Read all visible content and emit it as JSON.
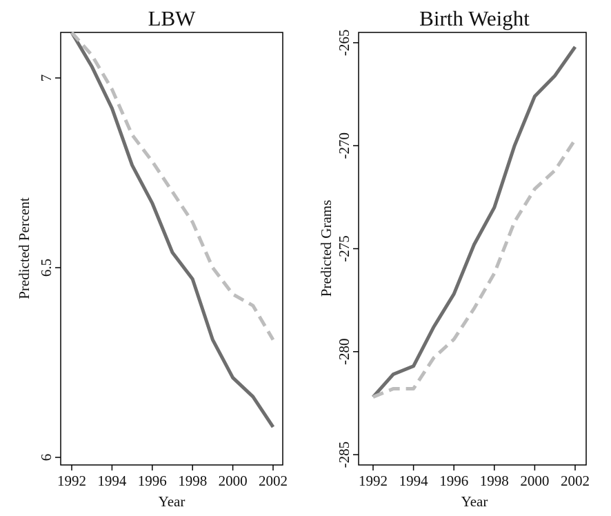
{
  "chart_data": [
    {
      "type": "line",
      "title": "LBW",
      "xlabel": "Year",
      "ylabel": "Predicted Percent",
      "x": [
        1992,
        1993,
        1994,
        1995,
        1996,
        1997,
        1998,
        1999,
        2000,
        2001,
        2002
      ],
      "xticks": [
        1992,
        1994,
        1996,
        1998,
        2000,
        2002
      ],
      "yticks": [
        6,
        6.5,
        7
      ],
      "ytick_labels": [
        "6",
        "6.5",
        "7"
      ],
      "ylim": [
        5.98,
        7.12
      ],
      "series": [
        {
          "style": "solid",
          "color": "#6e6e6e",
          "values": [
            7.12,
            7.03,
            6.92,
            6.77,
            6.67,
            6.54,
            6.47,
            6.31,
            6.21,
            6.16,
            6.08
          ]
        },
        {
          "style": "dashed",
          "color": "#bdbdbd",
          "values": [
            7.12,
            7.06,
            6.97,
            6.85,
            6.78,
            6.7,
            6.62,
            6.5,
            6.43,
            6.4,
            6.31
          ]
        }
      ]
    },
    {
      "type": "line",
      "title": "Birth Weight",
      "xlabel": "Year",
      "ylabel": "Predicted Grams",
      "x": [
        1992,
        1993,
        1994,
        1995,
        1996,
        1997,
        1998,
        1999,
        2000,
        2001,
        2002
      ],
      "xticks": [
        1992,
        1994,
        1996,
        1998,
        2000,
        2002
      ],
      "yticks": [
        -285,
        -280,
        -275,
        -270,
        -265
      ],
      "ytick_labels": [
        "-285",
        "-280",
        "-275",
        "-270",
        "-265"
      ],
      "ylim": [
        -285.5,
        -264.5
      ],
      "series": [
        {
          "style": "solid",
          "color": "#6e6e6e",
          "values": [
            -282.2,
            -281.1,
            -280.7,
            -278.8,
            -277.2,
            -274.8,
            -273.0,
            -270.0,
            -267.6,
            -266.6,
            -265.2
          ]
        },
        {
          "style": "dashed",
          "color": "#bdbdbd",
          "values": [
            -282.2,
            -281.8,
            -281.8,
            -280.3,
            -279.4,
            -277.9,
            -276.2,
            -273.7,
            -272.1,
            -271.2,
            -269.7
          ]
        }
      ]
    }
  ]
}
